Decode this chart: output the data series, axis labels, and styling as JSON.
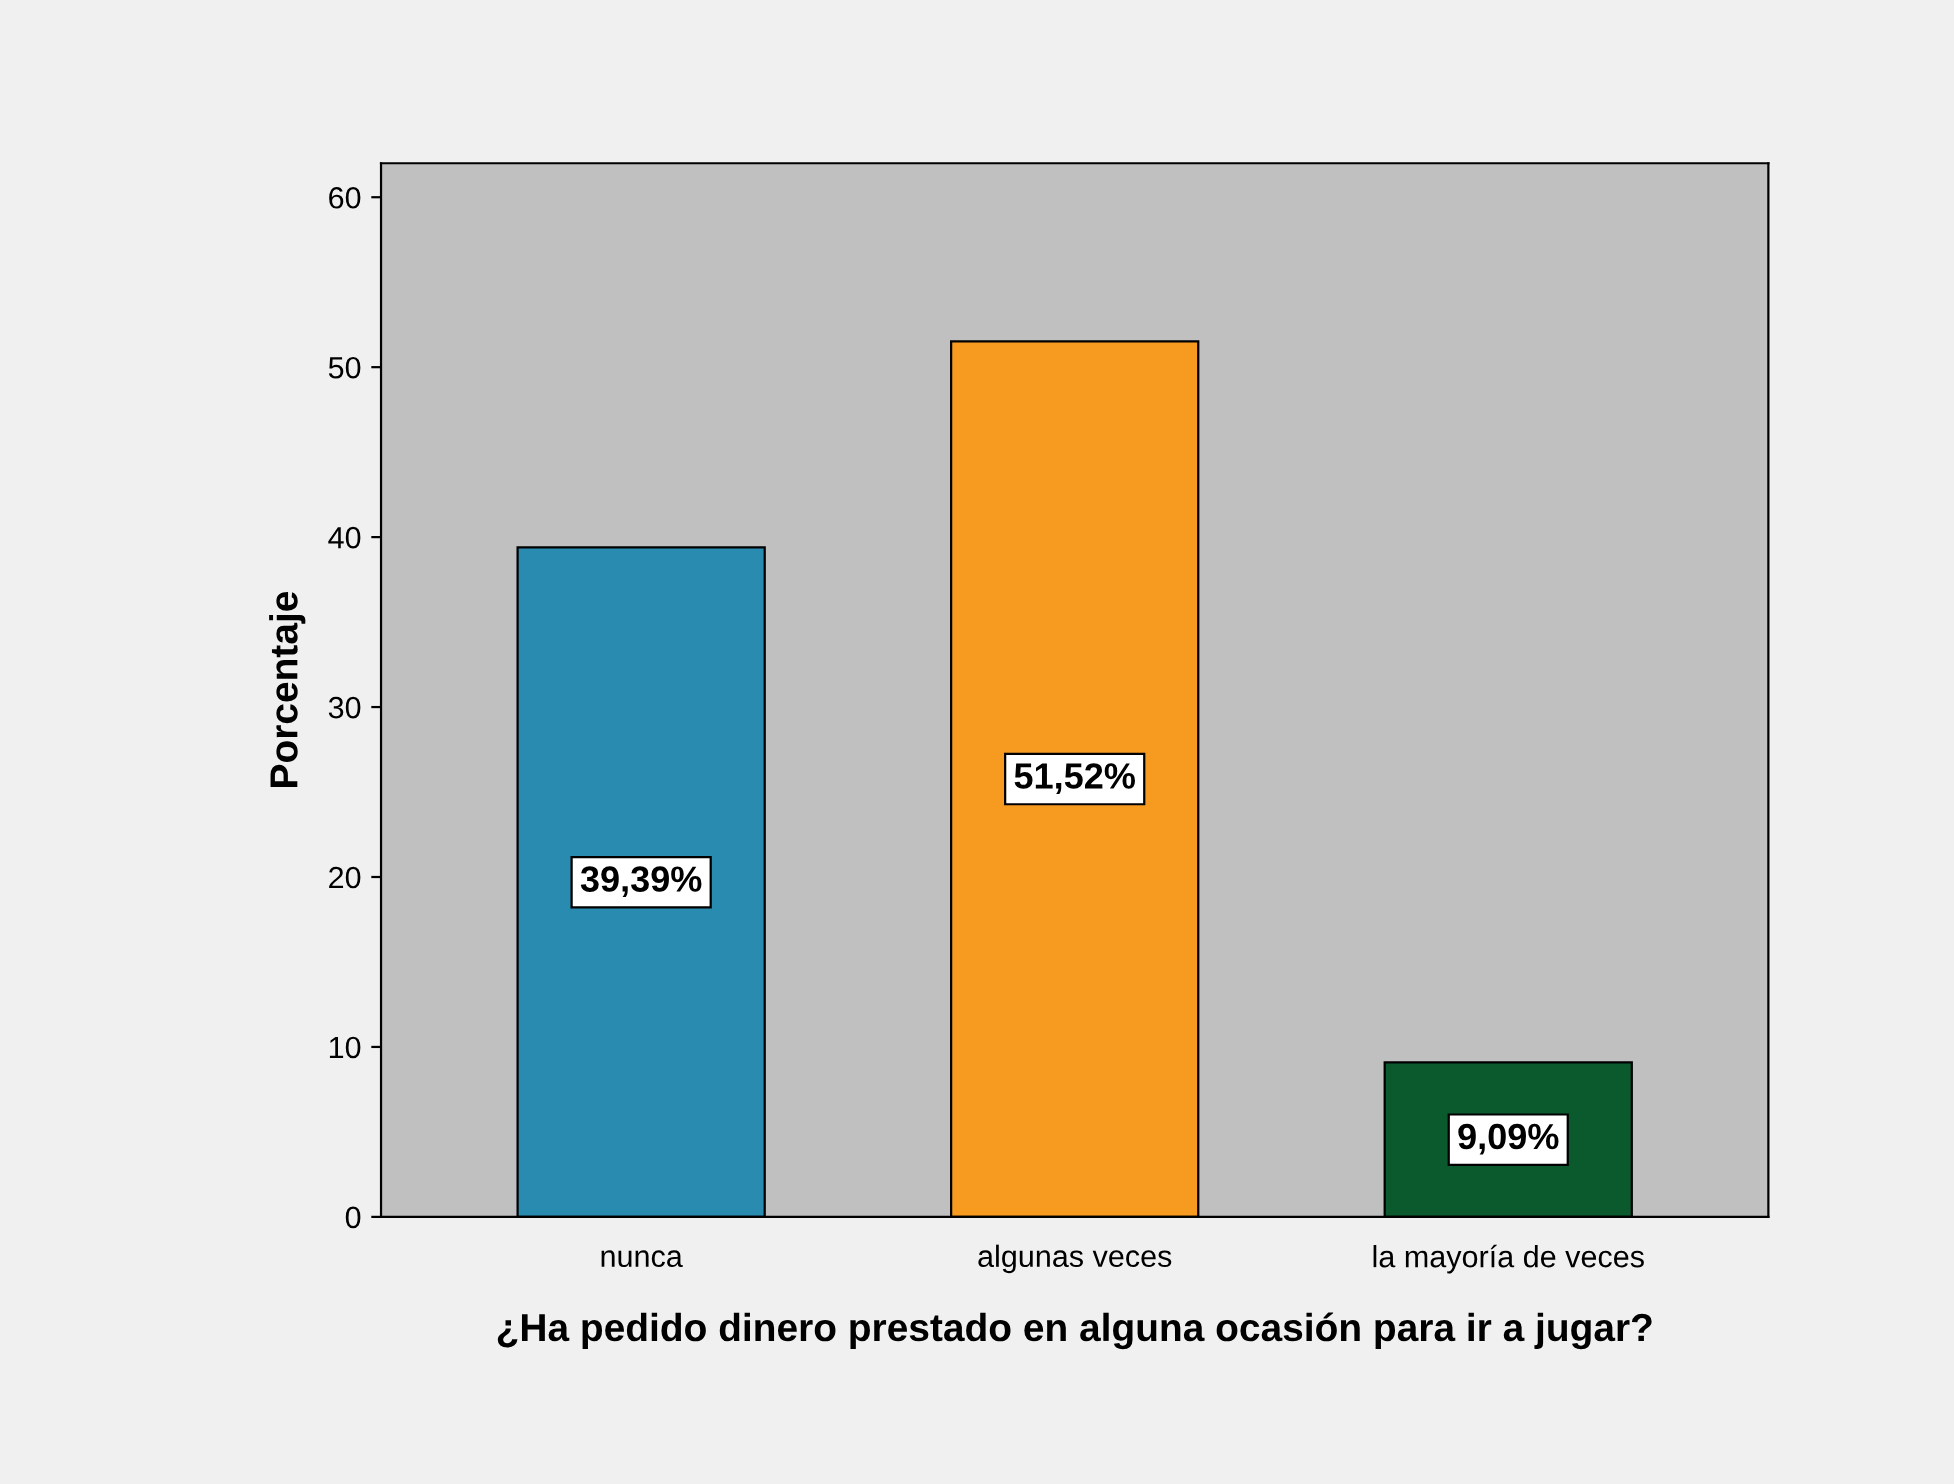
{
  "chart_data": {
    "type": "bar",
    "xlabel": "¿Ha pedido dinero prestado en alguna ocasión para ir a jugar?",
    "ylabel": "Porcentaje",
    "categories": [
      "nunca",
      "algunas veces",
      "la mayoría de veces"
    ],
    "values": [
      39.39,
      51.52,
      9.09
    ],
    "colors": [
      "#2a8bb0",
      "#f79a20",
      "#0b5a2e"
    ],
    "value_labels": [
      "39,39%",
      "51,52%",
      "9,09%"
    ],
    "ylim": [
      0,
      62
    ],
    "yticks": [
      0,
      10,
      20,
      30,
      40,
      50,
      60
    ],
    "grid": false,
    "legend": false
  }
}
